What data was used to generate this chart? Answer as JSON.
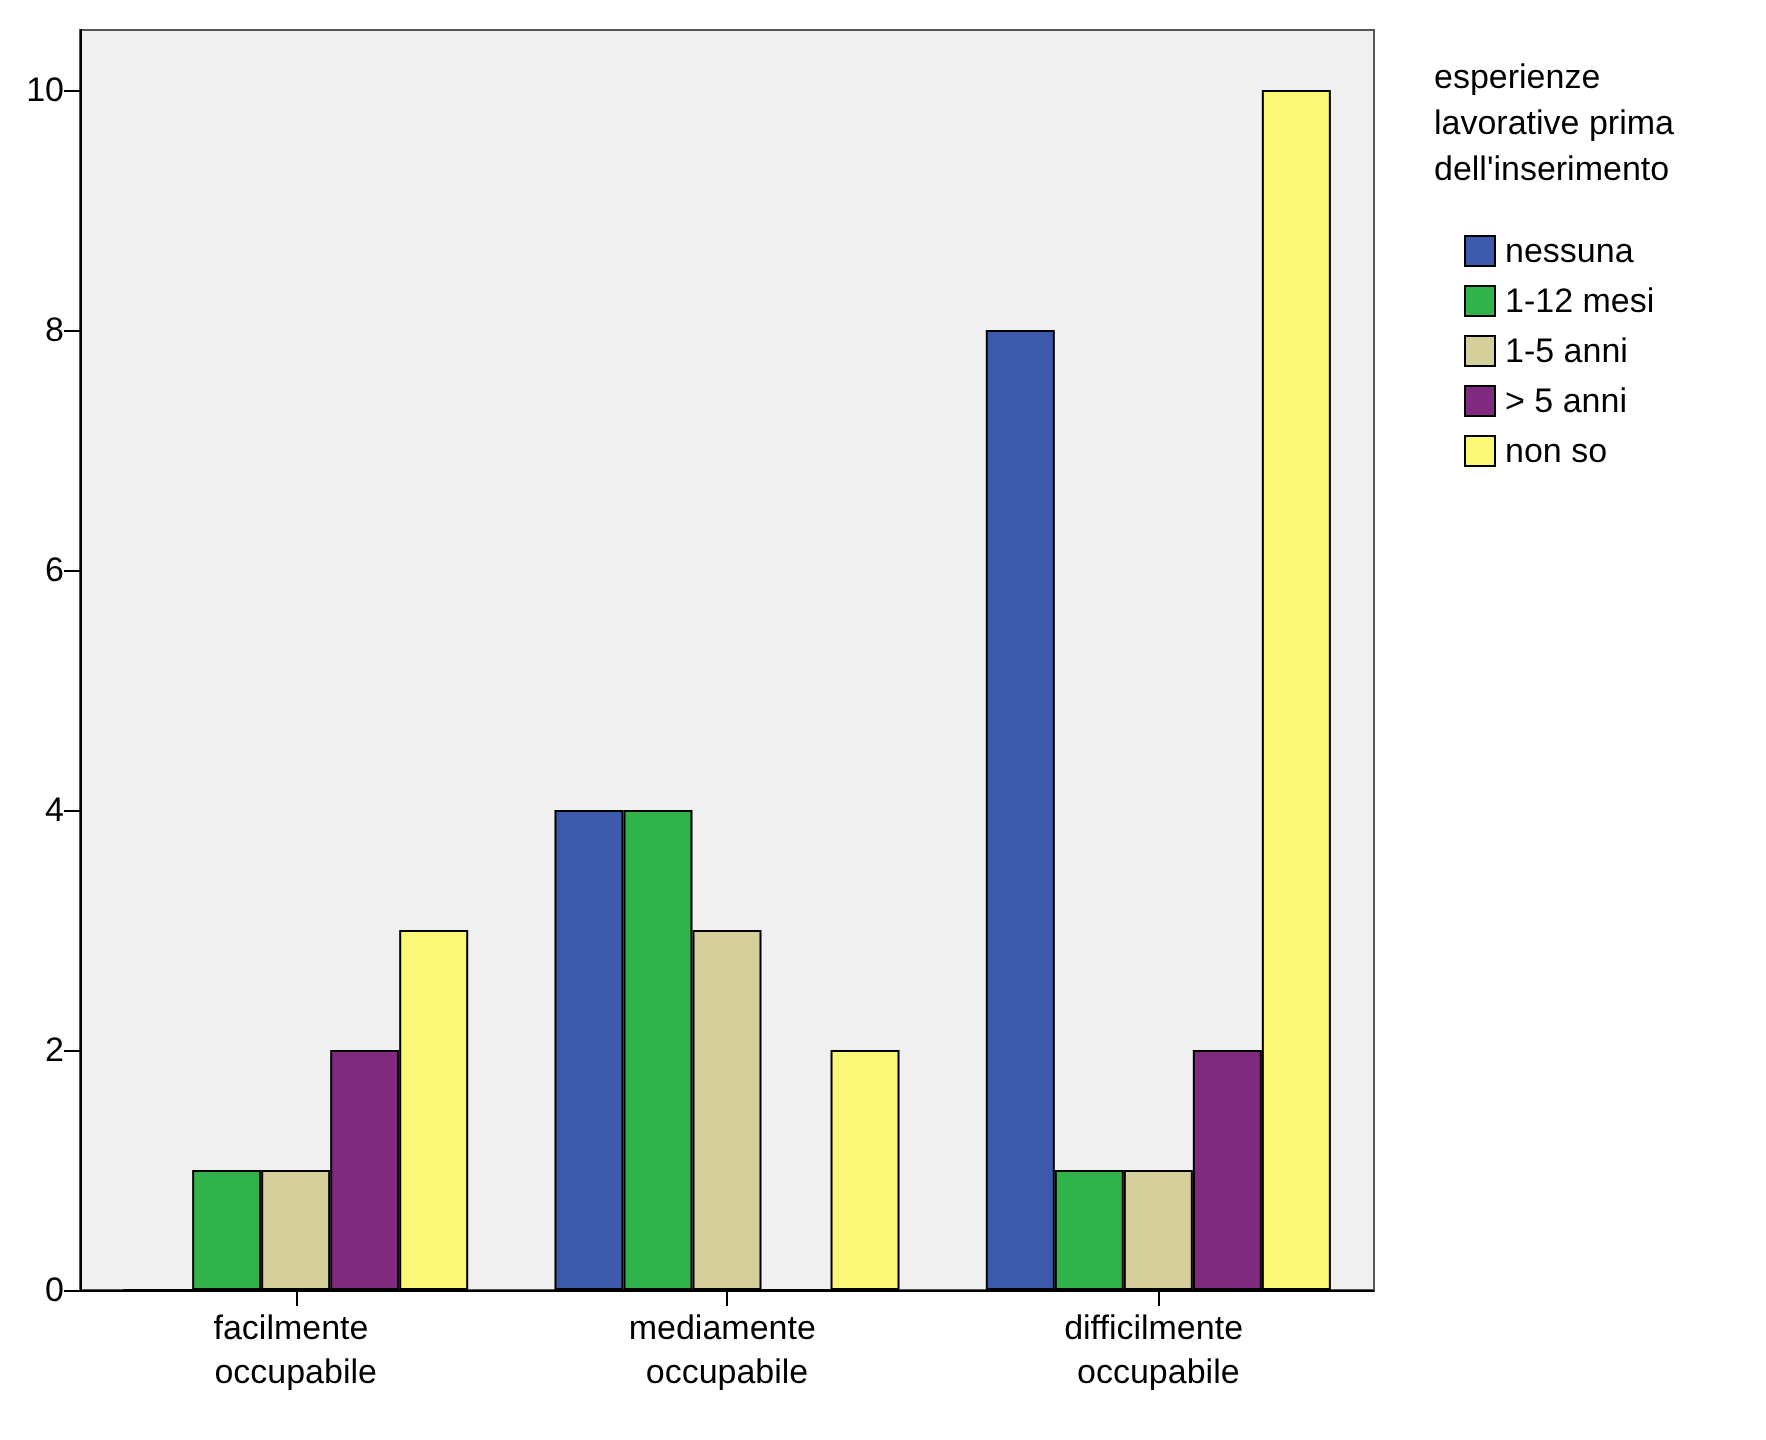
{
  "chart_data": {
    "type": "bar",
    "legend_title": "esperienze lavorative prima dell'inserimento",
    "categories": [
      "facilmente occupabile",
      "mediamente occupabile",
      "difficilmente occupabile"
    ],
    "series": [
      {
        "name": "nessuna",
        "color": "#3d59ab",
        "values": [
          0,
          4,
          8
        ]
      },
      {
        "name": "1-12 mesi",
        "color": "#2fb34a",
        "values": [
          1,
          4,
          1
        ]
      },
      {
        "name": "1-5 anni",
        "color": "#d5cf9b",
        "values": [
          1,
          3,
          1
        ]
      },
      {
        "name": "> 5 anni",
        "color": "#7f2a7f",
        "values": [
          2,
          0,
          2
        ]
      },
      {
        "name": "non so",
        "color": "#fbf877",
        "values": [
          3,
          2,
          10
        ]
      }
    ],
    "ylim": [
      0,
      10.5
    ],
    "yticks": [
      0,
      2,
      4,
      6,
      8,
      10
    ],
    "grid": false,
    "legend": "top right"
  }
}
